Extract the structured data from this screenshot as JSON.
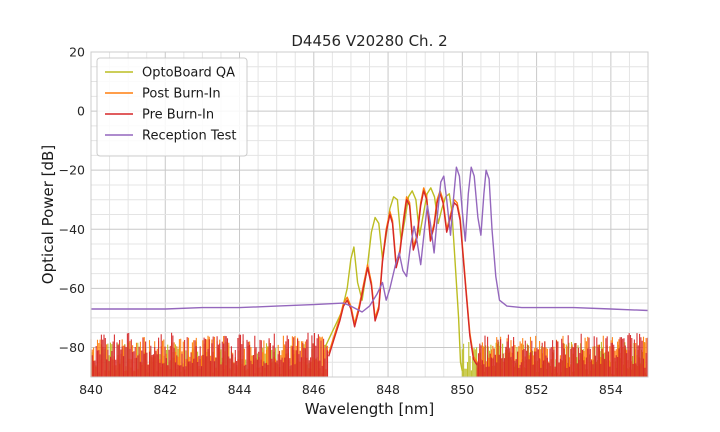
{
  "chart_data": {
    "type": "line",
    "title": "D4456 V20280 Ch. 2",
    "xlabel": "Wavelength [nm]",
    "ylabel": "Optical Power [dB]",
    "xlim": [
      840,
      855
    ],
    "ylim": [
      -90,
      20
    ],
    "xticks": [
      840,
      842,
      844,
      846,
      848,
      850,
      852,
      854
    ],
    "yticks": [
      20,
      0,
      -20,
      -40,
      -60,
      -80
    ],
    "grid": true,
    "legend_position": "top-left",
    "series": [
      {
        "name": "OptoBoard QA",
        "color": "#bcbd22",
        "points": [
          [
            846.3,
            -80
          ],
          [
            846.45,
            -76
          ],
          [
            846.6,
            -72
          ],
          [
            846.75,
            -68
          ],
          [
            846.9,
            -60
          ],
          [
            847.0,
            -50
          ],
          [
            847.08,
            -46
          ],
          [
            847.18,
            -58
          ],
          [
            847.3,
            -64
          ],
          [
            847.45,
            -52
          ],
          [
            847.55,
            -41
          ],
          [
            847.65,
            -36
          ],
          [
            847.75,
            -38
          ],
          [
            847.85,
            -50
          ],
          [
            847.95,
            -42
          ],
          [
            848.05,
            -33
          ],
          [
            848.15,
            -29
          ],
          [
            848.25,
            -30
          ],
          [
            848.35,
            -44
          ],
          [
            848.45,
            -37
          ],
          [
            848.55,
            -29
          ],
          [
            848.65,
            -27
          ],
          [
            848.75,
            -30
          ],
          [
            848.85,
            -42
          ],
          [
            848.95,
            -35
          ],
          [
            849.05,
            -28
          ],
          [
            849.15,
            -26
          ],
          [
            849.25,
            -29
          ],
          [
            849.35,
            -38
          ],
          [
            849.45,
            -33
          ],
          [
            849.55,
            -29
          ],
          [
            849.65,
            -28
          ],
          [
            849.72,
            -34
          ],
          [
            849.8,
            -50
          ],
          [
            849.9,
            -70
          ],
          [
            849.95,
            -85
          ],
          [
            850.0,
            -88
          ]
        ]
      },
      {
        "name": "Post Burn-In",
        "color": "#ff7f0e",
        "points": [
          [
            846.4,
            -82
          ],
          [
            846.55,
            -76
          ],
          [
            846.7,
            -70
          ],
          [
            846.8,
            -65
          ],
          [
            846.9,
            -63
          ],
          [
            847.0,
            -66
          ],
          [
            847.1,
            -72
          ],
          [
            847.22,
            -66
          ],
          [
            847.35,
            -58
          ],
          [
            847.45,
            -52
          ],
          [
            847.55,
            -58
          ],
          [
            847.65,
            -70
          ],
          [
            847.75,
            -66
          ],
          [
            847.85,
            -50
          ],
          [
            847.95,
            -40
          ],
          [
            848.05,
            -34
          ],
          [
            848.12,
            -37
          ],
          [
            848.22,
            -52
          ],
          [
            848.32,
            -47
          ],
          [
            848.42,
            -36
          ],
          [
            848.5,
            -29
          ],
          [
            848.58,
            -31
          ],
          [
            848.68,
            -46
          ],
          [
            848.78,
            -42
          ],
          [
            848.88,
            -31
          ],
          [
            848.96,
            -26
          ],
          [
            849.04,
            -29
          ],
          [
            849.14,
            -43
          ],
          [
            849.24,
            -38
          ],
          [
            849.32,
            -30
          ],
          [
            849.4,
            -27
          ],
          [
            849.48,
            -30
          ],
          [
            849.58,
            -40
          ],
          [
            849.68,
            -35
          ],
          [
            849.78,
            -30
          ],
          [
            849.86,
            -31
          ],
          [
            849.94,
            -36
          ],
          [
            850.0,
            -45
          ],
          [
            850.1,
            -60
          ],
          [
            850.2,
            -75
          ],
          [
            850.3,
            -83
          ],
          [
            850.4,
            -85
          ]
        ]
      },
      {
        "name": "Pre Burn-In",
        "color": "#d62728",
        "points": [
          [
            846.4,
            -83
          ],
          [
            846.55,
            -77
          ],
          [
            846.7,
            -71
          ],
          [
            846.8,
            -66
          ],
          [
            846.9,
            -64
          ],
          [
            847.0,
            -67
          ],
          [
            847.1,
            -73
          ],
          [
            847.22,
            -67
          ],
          [
            847.35,
            -59
          ],
          [
            847.45,
            -53
          ],
          [
            847.55,
            -59
          ],
          [
            847.65,
            -71
          ],
          [
            847.75,
            -67
          ],
          [
            847.85,
            -51
          ],
          [
            847.95,
            -41
          ],
          [
            848.05,
            -35
          ],
          [
            848.12,
            -38
          ],
          [
            848.22,
            -53
          ],
          [
            848.32,
            -48
          ],
          [
            848.42,
            -37
          ],
          [
            848.5,
            -30
          ],
          [
            848.58,
            -32
          ],
          [
            848.68,
            -47
          ],
          [
            848.78,
            -43
          ],
          [
            848.88,
            -32
          ],
          [
            848.96,
            -27
          ],
          [
            849.04,
            -30
          ],
          [
            849.14,
            -44
          ],
          [
            849.24,
            -39
          ],
          [
            849.32,
            -31
          ],
          [
            849.4,
            -28
          ],
          [
            849.48,
            -31
          ],
          [
            849.58,
            -41
          ],
          [
            849.68,
            -36
          ],
          [
            849.78,
            -31
          ],
          [
            849.86,
            -32
          ],
          [
            849.94,
            -37
          ],
          [
            850.0,
            -46
          ],
          [
            850.1,
            -61
          ],
          [
            850.2,
            -76
          ],
          [
            850.3,
            -84
          ],
          [
            850.4,
            -86
          ]
        ]
      },
      {
        "name": "Reception Test",
        "color": "#9467bd",
        "points": [
          [
            840.0,
            -67
          ],
          [
            841.0,
            -67
          ],
          [
            842.0,
            -67
          ],
          [
            843.0,
            -66.5
          ],
          [
            844.0,
            -66.5
          ],
          [
            845.0,
            -66
          ],
          [
            846.0,
            -65.5
          ],
          [
            846.8,
            -65
          ],
          [
            847.0,
            -66
          ],
          [
            847.3,
            -68
          ],
          [
            847.5,
            -66
          ],
          [
            847.7,
            -62
          ],
          [
            847.85,
            -58
          ],
          [
            847.95,
            -64
          ],
          [
            848.05,
            -60
          ],
          [
            848.2,
            -52
          ],
          [
            848.3,
            -48
          ],
          [
            848.4,
            -54
          ],
          [
            848.5,
            -56
          ],
          [
            848.6,
            -46
          ],
          [
            848.7,
            -39
          ],
          [
            848.78,
            -44
          ],
          [
            848.88,
            -52
          ],
          [
            848.98,
            -40
          ],
          [
            849.06,
            -32
          ],
          [
            849.14,
            -38
          ],
          [
            849.24,
            -48
          ],
          [
            849.34,
            -34
          ],
          [
            849.42,
            -24
          ],
          [
            849.5,
            -22
          ],
          [
            849.58,
            -30
          ],
          [
            849.68,
            -42
          ],
          [
            849.76,
            -30
          ],
          [
            849.84,
            -19
          ],
          [
            849.92,
            -22
          ],
          [
            850.0,
            -34
          ],
          [
            850.08,
            -44
          ],
          [
            850.16,
            -28
          ],
          [
            850.24,
            -19
          ],
          [
            850.32,
            -22
          ],
          [
            850.42,
            -36
          ],
          [
            850.5,
            -42
          ],
          [
            850.58,
            -28
          ],
          [
            850.64,
            -20
          ],
          [
            850.72,
            -23
          ],
          [
            850.8,
            -40
          ],
          [
            850.9,
            -56
          ],
          [
            851.0,
            -64
          ],
          [
            851.2,
            -66
          ],
          [
            851.6,
            -66.5
          ],
          [
            852.0,
            -66.5
          ],
          [
            853.0,
            -66.5
          ],
          [
            854.0,
            -67
          ],
          [
            855.0,
            -67.5
          ]
        ]
      }
    ]
  }
}
